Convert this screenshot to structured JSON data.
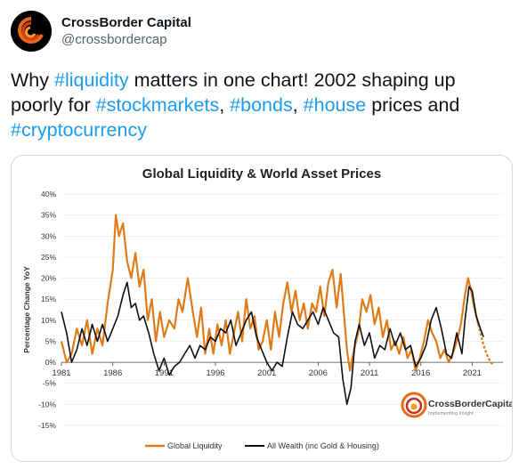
{
  "account": {
    "display_name": "CrossBorder Capital",
    "handle": "@crossbordercap",
    "avatar_icon": "crossborder-logo-icon"
  },
  "tweet": {
    "segments": [
      {
        "text": "Why ",
        "type": "text"
      },
      {
        "text": "#liquidity",
        "type": "hashtag"
      },
      {
        "text": " matters in one chart! 2002 shaping up poorly for ",
        "type": "text"
      },
      {
        "text": "#stockmarkets",
        "type": "hashtag"
      },
      {
        "text": ", ",
        "type": "text"
      },
      {
        "text": "#bonds",
        "type": "hashtag"
      },
      {
        "text": ", ",
        "type": "text"
      },
      {
        "text": "#house",
        "type": "hashtag"
      },
      {
        "text": " prices and ",
        "type": "text"
      },
      {
        "text": "#cryptocurrency",
        "type": "hashtag"
      }
    ]
  },
  "chart_data": {
    "type": "line",
    "title": "Global Liquidity & World Asset Prices",
    "ylabel": "Percentage Change YoY",
    "xlabel": "",
    "ylim": [
      -15,
      40
    ],
    "xlim": [
      1981,
      2024
    ],
    "yticks": [
      -15,
      -10,
      -5,
      0,
      5,
      10,
      15,
      20,
      25,
      30,
      35,
      40
    ],
    "ytick_labels": [
      "-15%",
      "-10%",
      "-5%",
      "0%",
      "5%",
      "10%",
      "15%",
      "20%",
      "25%",
      "30%",
      "35%",
      "40%"
    ],
    "xticks": [
      1981,
      1986,
      1991,
      1996,
      2001,
      2006,
      2011,
      2016,
      2021
    ],
    "xtick_labels": [
      "1981",
      "1986",
      "1991",
      "1996",
      "2001",
      "2006",
      "2011",
      "2016",
      "2021"
    ],
    "legend_position": "bottom",
    "watermark": {
      "name": "CrossBorderCapital",
      "tagline": "Implementing Insight"
    },
    "series": [
      {
        "name": "Global Liquidity",
        "color": "#e07b1a",
        "dash_after_x": 2021.6,
        "points": [
          [
            1981,
            5
          ],
          [
            1981.5,
            0
          ],
          [
            1982,
            2
          ],
          [
            1982.5,
            8
          ],
          [
            1983,
            4
          ],
          [
            1983.5,
            10
          ],
          [
            1984,
            2
          ],
          [
            1984.5,
            8
          ],
          [
            1985,
            4
          ],
          [
            1985.5,
            14
          ],
          [
            1986,
            22
          ],
          [
            1986.3,
            35
          ],
          [
            1986.6,
            30
          ],
          [
            1987,
            33
          ],
          [
            1987.4,
            24
          ],
          [
            1987.8,
            20
          ],
          [
            1988.2,
            26
          ],
          [
            1988.6,
            18
          ],
          [
            1989,
            22
          ],
          [
            1989.4,
            10
          ],
          [
            1989.8,
            15
          ],
          [
            1990.2,
            5
          ],
          [
            1990.6,
            12
          ],
          [
            1991,
            6
          ],
          [
            1991.5,
            10
          ],
          [
            1992,
            8
          ],
          [
            1992.4,
            15
          ],
          [
            1992.8,
            12
          ],
          [
            1993.3,
            20
          ],
          [
            1993.8,
            12
          ],
          [
            1994.2,
            6
          ],
          [
            1994.6,
            13
          ],
          [
            1995,
            2
          ],
          [
            1995.4,
            8
          ],
          [
            1995.8,
            2
          ],
          [
            1996.2,
            9
          ],
          [
            1996.6,
            4
          ],
          [
            1997,
            10
          ],
          [
            1997.4,
            2
          ],
          [
            1997.8,
            7
          ],
          [
            1998.2,
            12
          ],
          [
            1998.6,
            5
          ],
          [
            1999,
            15
          ],
          [
            1999.4,
            8
          ],
          [
            1999.8,
            11
          ],
          [
            2000.2,
            3
          ],
          [
            2000.6,
            5
          ],
          [
            2001,
            10
          ],
          [
            2001.4,
            3
          ],
          [
            2001.8,
            12
          ],
          [
            2002.2,
            6
          ],
          [
            2002.6,
            14
          ],
          [
            2003,
            19
          ],
          [
            2003.4,
            12
          ],
          [
            2003.8,
            17
          ],
          [
            2004.2,
            10
          ],
          [
            2004.6,
            14
          ],
          [
            2005,
            8
          ],
          [
            2005.4,
            14
          ],
          [
            2005.8,
            12
          ],
          [
            2006.2,
            18
          ],
          [
            2006.6,
            11
          ],
          [
            2007,
            19
          ],
          [
            2007.4,
            22
          ],
          [
            2007.8,
            13
          ],
          [
            2008.2,
            21
          ],
          [
            2008.5,
            12
          ],
          [
            2008.8,
            3
          ],
          [
            2009.1,
            -2
          ],
          [
            2009.5,
            3
          ],
          [
            2009.9,
            7
          ],
          [
            2010.3,
            15
          ],
          [
            2010.7,
            12
          ],
          [
            2011.1,
            16
          ],
          [
            2011.5,
            9
          ],
          [
            2011.9,
            13
          ],
          [
            2012.3,
            6
          ],
          [
            2012.7,
            10
          ],
          [
            2013.1,
            3
          ],
          [
            2013.5,
            5
          ],
          [
            2013.9,
            2
          ],
          [
            2014.3,
            6
          ],
          [
            2014.7,
            1
          ],
          [
            2015.1,
            3
          ],
          [
            2015.5,
            -2
          ],
          [
            2015.9,
            1
          ],
          [
            2016.3,
            5
          ],
          [
            2016.7,
            10
          ],
          [
            2017.1,
            7
          ],
          [
            2017.5,
            5
          ],
          [
            2017.9,
            1
          ],
          [
            2018.3,
            3
          ],
          [
            2018.7,
            0
          ],
          [
            2019.1,
            2
          ],
          [
            2019.5,
            5
          ],
          [
            2019.9,
            9
          ],
          [
            2020.3,
            16
          ],
          [
            2020.6,
            20
          ],
          [
            2020.9,
            17
          ],
          [
            2021.2,
            13
          ],
          [
            2021.6,
            9
          ],
          [
            2022,
            5
          ],
          [
            2022.4,
            2
          ],
          [
            2022.8,
            0
          ],
          [
            2023,
            -0.5
          ]
        ]
      },
      {
        "name": "All Wealth (inc Gold & Housing)",
        "color": "#111111",
        "points": [
          [
            1981,
            12
          ],
          [
            1981.5,
            7
          ],
          [
            1982,
            0
          ],
          [
            1982.5,
            3
          ],
          [
            1983,
            8
          ],
          [
            1983.5,
            4
          ],
          [
            1984,
            9
          ],
          [
            1984.5,
            5
          ],
          [
            1985,
            9
          ],
          [
            1985.5,
            5
          ],
          [
            1986,
            8
          ],
          [
            1986.5,
            11
          ],
          [
            1987,
            16
          ],
          [
            1987.4,
            19
          ],
          [
            1987.8,
            13
          ],
          [
            1988.2,
            14
          ],
          [
            1988.6,
            10
          ],
          [
            1989,
            11
          ],
          [
            1989.5,
            7
          ],
          [
            1990,
            2
          ],
          [
            1990.5,
            -2
          ],
          [
            1991,
            1
          ],
          [
            1991.5,
            -3
          ],
          [
            1992,
            -1
          ],
          [
            1992.5,
            0
          ],
          [
            1993,
            2
          ],
          [
            1993.5,
            4
          ],
          [
            1994,
            1
          ],
          [
            1994.5,
            4
          ],
          [
            1995,
            3
          ],
          [
            1995.5,
            6
          ],
          [
            1996,
            5
          ],
          [
            1996.5,
            8
          ],
          [
            1997,
            7
          ],
          [
            1997.5,
            10
          ],
          [
            1998,
            4
          ],
          [
            1998.5,
            7
          ],
          [
            1999,
            10
          ],
          [
            1999.5,
            12
          ],
          [
            2000,
            6
          ],
          [
            2000.5,
            3
          ],
          [
            2001,
            0
          ],
          [
            2001.5,
            -2
          ],
          [
            2002,
            0
          ],
          [
            2002.5,
            -1
          ],
          [
            2003,
            6
          ],
          [
            2003.5,
            12
          ],
          [
            2004,
            9
          ],
          [
            2004.5,
            8
          ],
          [
            2005,
            10
          ],
          [
            2005.5,
            12
          ],
          [
            2006,
            9
          ],
          [
            2006.5,
            13
          ],
          [
            2007,
            10
          ],
          [
            2007.5,
            7
          ],
          [
            2008,
            6
          ],
          [
            2008.4,
            -4
          ],
          [
            2008.8,
            -10
          ],
          [
            2009.2,
            -6
          ],
          [
            2009.6,
            5
          ],
          [
            2010,
            9
          ],
          [
            2010.5,
            4
          ],
          [
            2011,
            7
          ],
          [
            2011.5,
            1
          ],
          [
            2012,
            4
          ],
          [
            2012.5,
            3
          ],
          [
            2013,
            8
          ],
          [
            2013.5,
            4
          ],
          [
            2014,
            7
          ],
          [
            2014.5,
            3
          ],
          [
            2015,
            4
          ],
          [
            2015.5,
            -1
          ],
          [
            2016,
            1
          ],
          [
            2016.5,
            4
          ],
          [
            2017,
            10
          ],
          [
            2017.5,
            13
          ],
          [
            2018,
            8
          ],
          [
            2018.5,
            2
          ],
          [
            2019,
            1
          ],
          [
            2019.5,
            7
          ],
          [
            2020,
            2
          ],
          [
            2020.3,
            10
          ],
          [
            2020.7,
            18
          ],
          [
            2021,
            17
          ],
          [
            2021.4,
            11
          ],
          [
            2021.8,
            8
          ],
          [
            2022.1,
            6
          ]
        ]
      }
    ]
  }
}
